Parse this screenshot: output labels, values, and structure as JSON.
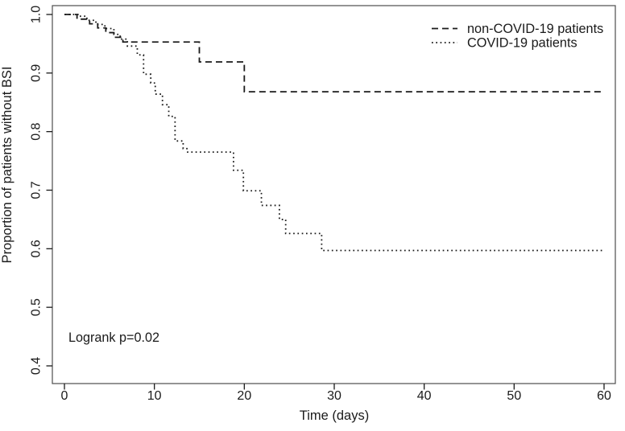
{
  "chart_data": {
    "type": "line",
    "subtype": "kaplan-meier-step",
    "title": "",
    "xlabel": "Time (days)",
    "ylabel": "Proportion of patients without BSI",
    "annotation": "Logrank p=0.02",
    "xlim": [
      0,
      60
    ],
    "ylim": [
      0.4,
      1.0
    ],
    "x_ticks": [
      0,
      10,
      20,
      30,
      40,
      50,
      60
    ],
    "y_ticks": [
      "1.0",
      "0.9",
      "0.8",
      "0.7",
      "0.6",
      "0.5",
      "0.4"
    ],
    "grid": false,
    "legend_position": "top-right",
    "line_color": "#1a1a1a",
    "background_color": "#ffffff",
    "series": [
      {
        "name": "non-COVID-19 patients",
        "style": "dashed",
        "end_day": 60,
        "steps": [
          [
            0,
            1.0
          ],
          [
            1.4,
            0.992
          ],
          [
            2.8,
            0.984
          ],
          [
            3.7,
            0.977
          ],
          [
            4.6,
            0.969
          ],
          [
            5.5,
            0.961
          ],
          [
            6.5,
            0.953
          ],
          [
            15,
            0.919
          ],
          [
            20,
            0.868
          ]
        ]
      },
      {
        "name": "COVID-19 patients",
        "style": "dotted",
        "end_day": 60,
        "steps": [
          [
            0,
            1.0
          ],
          [
            1.5,
            0.997
          ],
          [
            2.5,
            0.99
          ],
          [
            3.5,
            0.983
          ],
          [
            4.5,
            0.976
          ],
          [
            5.5,
            0.966
          ],
          [
            6.2,
            0.958
          ],
          [
            7,
            0.946
          ],
          [
            8.1,
            0.931
          ],
          [
            8.8,
            0.898
          ],
          [
            9.6,
            0.883
          ],
          [
            10.1,
            0.864
          ],
          [
            10.9,
            0.846
          ],
          [
            11.6,
            0.826
          ],
          [
            12.3,
            0.784
          ],
          [
            13.2,
            0.771
          ],
          [
            13.7,
            0.765
          ],
          [
            18.8,
            0.734
          ],
          [
            19.9,
            0.699
          ],
          [
            21.9,
            0.674
          ],
          [
            23.9,
            0.65
          ],
          [
            24.6,
            0.626
          ],
          [
            28.6,
            0.597
          ]
        ]
      }
    ]
  }
}
